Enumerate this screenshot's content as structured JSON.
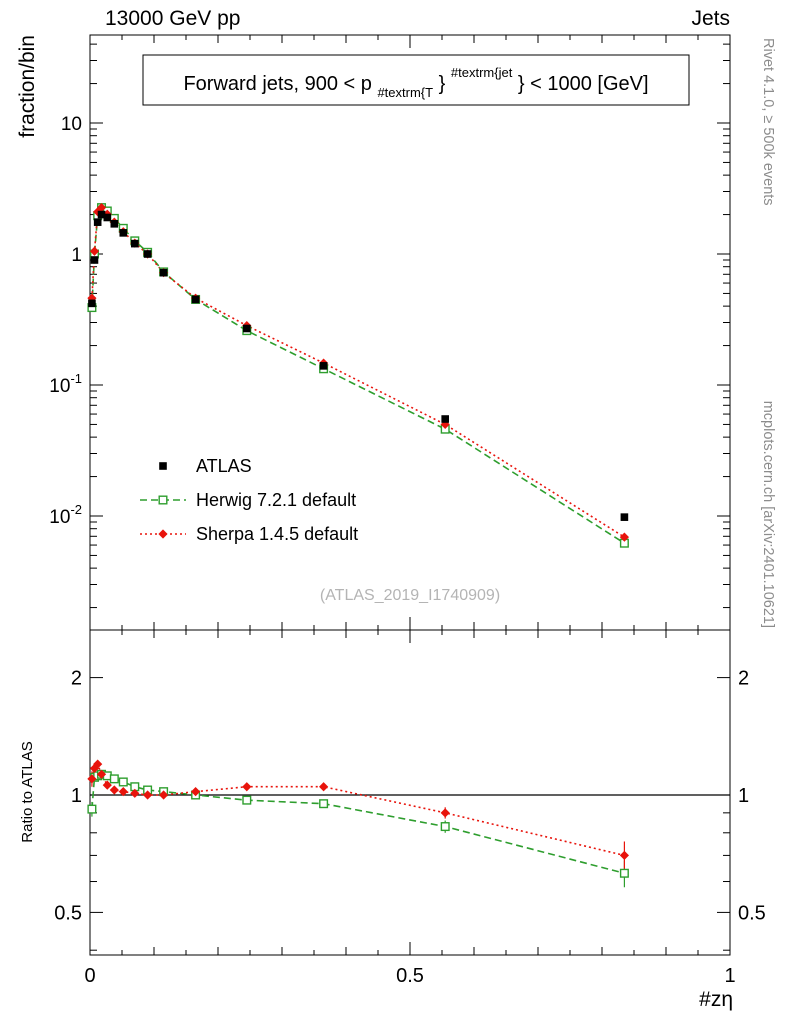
{
  "header": {
    "beam": "13000 GeV pp",
    "group": "Jets"
  },
  "sidebar_right": {
    "rivet": "Rivet 4.1.0, ≥ 500k events",
    "mcplots": "mcplots.cern.ch [arXiv:2401.10621]"
  },
  "title": {
    "pre": "Forward jets, 900 < p",
    "sub": "#textrm{T",
    "mid": "}",
    "sup": "#textrm{jet",
    "post": "} < 1000 [GeV]"
  },
  "watermark": "(ATLAS_2019_I1740909)",
  "axes": {
    "y_main_label": "fraction/bin",
    "y_ratio_label": "Ratio to ATLAS",
    "x_label": "#zη",
    "x_ticks": [
      {
        "v": 0,
        "label": "0"
      },
      {
        "v": 0.5,
        "label": "0.5"
      },
      {
        "v": 1,
        "label": "1"
      }
    ],
    "y_main_ticks": [
      {
        "v": 10,
        "base": "10",
        "exp": ""
      },
      {
        "v": 1,
        "base": "1",
        "exp": ""
      },
      {
        "v": 0.1,
        "base": "10",
        "exp": "-1"
      },
      {
        "v": 0.01,
        "base": "10",
        "exp": "-2"
      }
    ],
    "y_ratio_ticks": [
      {
        "v": 2,
        "label": "2"
      },
      {
        "v": 1,
        "label": "1"
      },
      {
        "v": 0.5,
        "label": "0.5"
      }
    ],
    "y_ratio_minor_ticks": [
      0.4,
      0.6,
      0.7,
      0.8,
      0.9
    ]
  },
  "legend": [
    {
      "label": "ATLAS",
      "series": "atlas"
    },
    {
      "label": "Herwig 7.2.1 default",
      "series": "herwig"
    },
    {
      "label": "Sherpa 1.4.5 default",
      "series": "sherpa"
    }
  ],
  "colors": {
    "atlas": "#000000",
    "herwig": "#2e9e2e",
    "sherpa": "#e8140c",
    "frame": "#000000",
    "watermark": "#b4b4b4",
    "side_text": "#8c8c8c"
  },
  "chart_data": {
    "type": "line",
    "xlabel": "#zη",
    "ylabel_main": "fraction/bin",
    "ylabel_ratio": "Ratio to ATLAS",
    "xlim": [
      0,
      1
    ],
    "ylim_main": [
      0.0014,
      45
    ],
    "ylim_ratio": [
      0.39,
      2.65
    ],
    "yscale": "log",
    "x": [
      0.003,
      0.007,
      0.012,
      0.018,
      0.027,
      0.038,
      0.052,
      0.07,
      0.09,
      0.115,
      0.165,
      0.245,
      0.365,
      0.555,
      0.835
    ],
    "series": [
      {
        "name": "ATLAS",
        "values": [
          0.42,
          0.9,
          1.75,
          2.0,
          1.9,
          1.7,
          1.45,
          1.2,
          1.0,
          0.72,
          0.45,
          0.27,
          0.14,
          0.055,
          0.0098
        ]
      },
      {
        "name": "Herwig 7.2.1 default",
        "values": [
          0.39,
          1.0,
          1.96,
          2.26,
          2.13,
          1.87,
          1.57,
          1.26,
          1.03,
          0.73,
          0.45,
          0.26,
          0.133,
          0.046,
          0.0062
        ],
        "ratio": [
          0.92,
          1.11,
          1.12,
          1.13,
          1.12,
          1.1,
          1.08,
          1.05,
          1.03,
          1.02,
          1.0,
          0.97,
          0.95,
          0.83,
          0.63
        ],
        "ratio_err": [
          0.04,
          0.02,
          0.02,
          0.015,
          0.015,
          0.012,
          0.012,
          0.012,
          0.012,
          0.012,
          0.015,
          0.018,
          0.02,
          0.03,
          0.05
        ]
      },
      {
        "name": "Sherpa 1.4.5 default",
        "values": [
          0.46,
          1.05,
          2.1,
          2.26,
          2.01,
          1.75,
          1.48,
          1.21,
          1.0,
          0.72,
          0.46,
          0.284,
          0.147,
          0.05,
          0.0069
        ],
        "ratio": [
          1.1,
          1.17,
          1.2,
          1.13,
          1.06,
          1.03,
          1.02,
          1.01,
          1.0,
          1.0,
          1.02,
          1.05,
          1.05,
          0.9,
          0.7
        ],
        "ratio_err": [
          0.05,
          0.03,
          0.02,
          0.015,
          0.015,
          0.012,
          0.012,
          0.012,
          0.012,
          0.012,
          0.015,
          0.018,
          0.02,
          0.03,
          0.06
        ]
      }
    ]
  }
}
